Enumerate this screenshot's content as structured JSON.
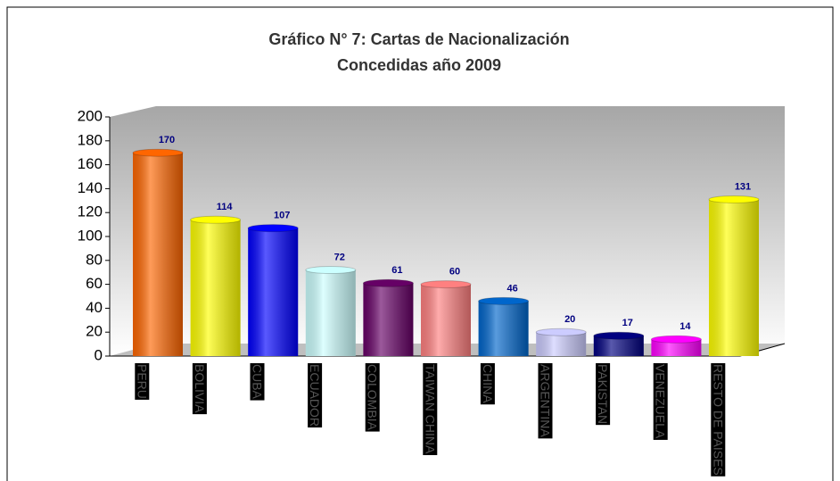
{
  "chart_data": {
    "type": "bar",
    "title": "Gráfico N° 7: Cartas de Nacionalización",
    "subtitle": "Concedidas año  2009",
    "categories": [
      "PERU",
      "BOLIVIA",
      "CUBA",
      "ECUADOR",
      "COLOMBIA",
      "TAIWAN CHINA",
      "CHINA",
      "ARGENTINA",
      "PAKISTAN",
      "VENEZUELA",
      "RESTO DE PAISES"
    ],
    "values": [
      170,
      114,
      107,
      72,
      61,
      60,
      46,
      20,
      17,
      14,
      131
    ],
    "colors": [
      "#ff6600",
      "#ffff00",
      "#0000ff",
      "#ccffff",
      "#660066",
      "#ff8080",
      "#0066cc",
      "#ccccff",
      "#000080",
      "#ff00ff",
      "#ffff00"
    ],
    "ylim": [
      0,
      200
    ],
    "yticks": [
      0,
      20,
      40,
      60,
      80,
      100,
      120,
      140,
      160,
      180,
      200
    ]
  }
}
